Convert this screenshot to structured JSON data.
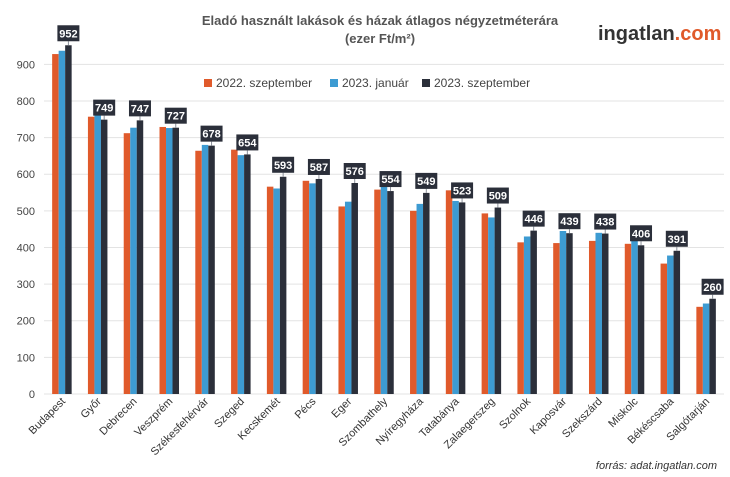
{
  "chart_data": {
    "type": "bar",
    "title": "Eladó használt lakások és házak átlagos négyzetméterára",
    "subtitle": "(ezer Ft/m²)",
    "categories": [
      "Budapest",
      "Győr",
      "Debrecen",
      "Veszprém",
      "Székesfehérvár",
      "Szeged",
      "Kecskemét",
      "Pécs",
      "Eger",
      "Szombathely",
      "Nyíregyháza",
      "Tatabánya",
      "Zalaegerszeg",
      "Szolnok",
      "Kaposvár",
      "Szekszárd",
      "Miskolc",
      "Békéscsaba",
      "Salgótarján"
    ],
    "series": [
      {
        "name": "2022. szeptember",
        "color": "#e05a2b",
        "values": [
          928,
          757,
          712,
          729,
          664,
          667,
          566,
          582,
          512,
          558,
          500,
          556,
          493,
          414,
          412,
          418,
          410,
          356,
          238
        ]
      },
      {
        "name": "2023. január",
        "color": "#3d9bd2",
        "values": [
          937,
          764,
          727,
          726,
          680,
          652,
          561,
          575,
          525,
          572,
          519,
          527,
          482,
          430,
          445,
          440,
          420,
          378,
          247
        ]
      },
      {
        "name": "2023. szeptember",
        "color": "#2b2f3a",
        "values": [
          952,
          749,
          747,
          727,
          678,
          654,
          593,
          587,
          576,
          554,
          549,
          523,
          509,
          446,
          439,
          438,
          406,
          391,
          260
        ]
      }
    ],
    "data_labels": [
      "952",
      "749",
      "747",
      "727",
      "678",
      "654",
      "593",
      "587",
      "576",
      "554",
      "549",
      "523",
      "509",
      "446",
      "439",
      "438",
      "406",
      "391",
      "260"
    ],
    "ylim": [
      0,
      950
    ],
    "yticks": [
      0,
      100,
      200,
      300,
      400,
      500,
      600,
      700,
      800,
      900
    ],
    "grid": true,
    "legend_position": "top-center",
    "xlabel": "",
    "ylabel": ""
  },
  "logo": {
    "part1": "ingatlan",
    "part2": ".com",
    "color1": "#333333",
    "color2": "#e05a2b"
  },
  "source": "forrás: adat.ingatlan.com"
}
